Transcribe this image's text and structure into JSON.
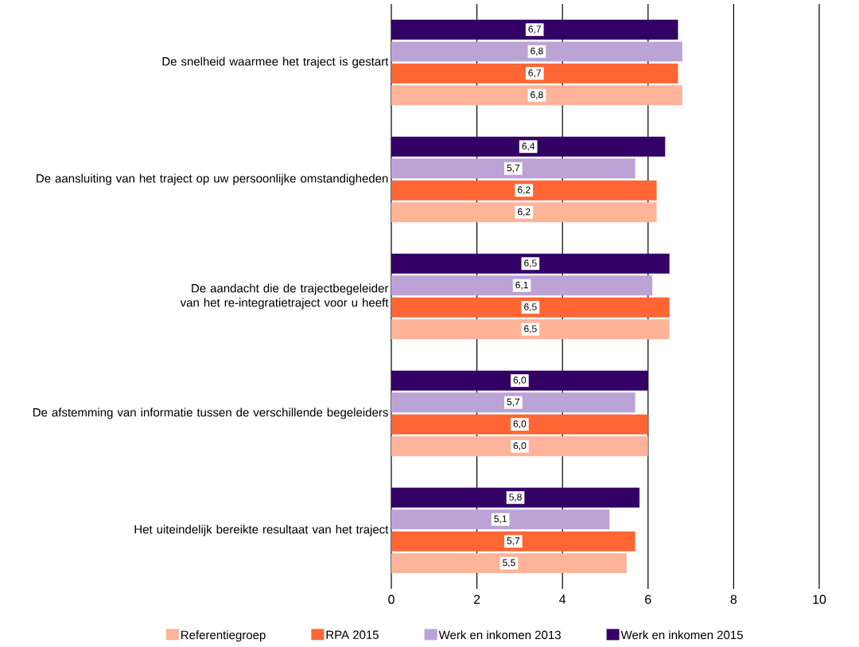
{
  "chart_data": {
    "type": "bar",
    "orientation": "horizontal",
    "categories": [
      "De snelheid waarmee het traject is gestart",
      "De aansluiting van het traject op uw persoonlijke omstandigheden",
      "De aandacht die de trajectbegeleider van het re-integratietraject voor u heeft",
      "De afstemming van informatie tussen de verschillende begeleiders",
      "Het uiteindelijk bereikte resultaat van het traject"
    ],
    "series": [
      {
        "name": "Referentiegroep",
        "color": "#ffb399",
        "values": [
          6.8,
          6.2,
          6.5,
          6.0,
          5.5
        ],
        "value_labels": [
          "6,8",
          "6,2",
          "6,5",
          "6,0",
          "5,5"
        ]
      },
      {
        "name": "RPA 2015",
        "color": "#ff6633",
        "values": [
          6.7,
          6.2,
          6.5,
          6.0,
          5.7
        ],
        "value_labels": [
          "6,7",
          "6,2",
          "6,5",
          "6,0",
          "5,7"
        ]
      },
      {
        "name": "Werk en inkomen 2013",
        "color": "#bca3d6",
        "values": [
          6.8,
          5.7,
          6.1,
          5.7,
          5.1
        ],
        "value_labels": [
          "6,8",
          "5,7",
          "6,1",
          "5,7",
          "5,1"
        ]
      },
      {
        "name": "Werk en inkomen 2015",
        "color": "#330066",
        "values": [
          6.7,
          6.4,
          6.5,
          6.0,
          5.8
        ],
        "value_labels": [
          "6,7",
          "6,4",
          "6,5",
          "6,0",
          "5,8"
        ]
      }
    ],
    "xlim": [
      0,
      10
    ],
    "xticks": [
      0,
      2,
      4,
      6,
      8,
      10
    ],
    "grid": "x",
    "legend": "bottom"
  }
}
